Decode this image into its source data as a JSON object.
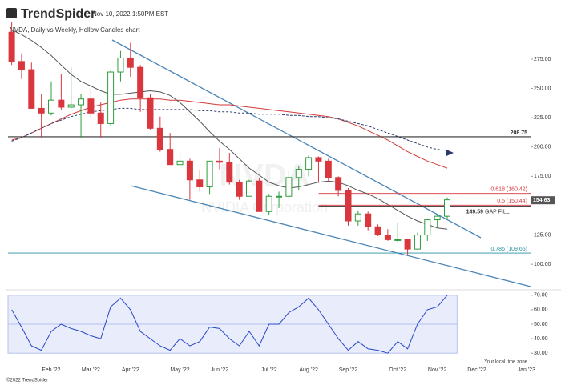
{
  "header": {
    "brand": "TrendSpider",
    "timestamp": "Nov 10, 2022 1:50PM EST",
    "subtitle": "NVDA, Daily vs Weekly, Hollow Candles chart",
    "watermark": "NVDA",
    "watermark_sub": "NVIDIA Corporation"
  },
  "footer": {
    "copyright": "©2022 TrendSpider",
    "timezone": "Your local time zone"
  },
  "chart_data": [
    {
      "type": "candlestick",
      "categories": [
        null,
        null,
        null,
        null,
        "Feb '22",
        null,
        null,
        null,
        "Mar '22",
        null,
        null,
        null,
        "Apr '22",
        null,
        null,
        null,
        null,
        "May '22",
        null,
        null,
        null,
        "Jun '22",
        null,
        null,
        null,
        null,
        "Jul '22",
        null,
        null,
        null,
        "Aug '22",
        null,
        null,
        null,
        "Sep '22",
        null,
        null,
        null,
        null,
        "Oct '22",
        null,
        null,
        null,
        "Nov '22",
        null,
        null,
        null,
        "Dec '22",
        null,
        null,
        null,
        null,
        "Jan '23",
        null
      ],
      "open": [
        298,
        273,
        266,
        233,
        229,
        240,
        234,
        236,
        241,
        229,
        220,
        264,
        276,
        268,
        242,
        216,
        198,
        185,
        188,
        172,
        166,
        188,
        187,
        170,
        158,
        171,
        145,
        158,
        158,
        174,
        181,
        191,
        188,
        174,
        163,
        137,
        143,
        132,
        125,
        121,
        121,
        113,
        125,
        138,
        141,
        null,
        null,
        null,
        null,
        null,
        null,
        null,
        null,
        null
      ],
      "high": [
        307,
        280,
        272,
        245,
        256,
        262,
        268,
        245,
        250,
        238,
        265,
        282,
        289,
        270,
        245,
        226,
        212,
        197,
        190,
        180,
        188,
        199,
        195,
        172,
        172,
        174,
        160,
        162,
        180,
        184,
        193,
        192,
        190,
        175,
        165,
        146,
        145,
        134,
        130,
        135,
        122,
        127,
        139,
        142,
        157,
        null,
        null,
        null,
        null,
        null,
        null,
        null,
        null,
        null
      ],
      "low": [
        270,
        258,
        233,
        208,
        227,
        232,
        233,
        208,
        225,
        208,
        218,
        256,
        260,
        230,
        215,
        196,
        185,
        180,
        155,
        162,
        160,
        181,
        168,
        155,
        158,
        145,
        142,
        148,
        156,
        163,
        175,
        170,
        170,
        158,
        133,
        133,
        129,
        124,
        120,
        119,
        108,
        113,
        120,
        131,
        139,
        null,
        null,
        null,
        null,
        null,
        null,
        null,
        null,
        null
      ],
      "close": [
        273,
        266,
        233,
        229,
        240,
        234,
        236,
        241,
        229,
        220,
        264,
        276,
        268,
        242,
        216,
        198,
        185,
        188,
        172,
        166,
        188,
        187,
        170,
        158,
        171,
        145,
        158,
        158,
        174,
        181,
        191,
        188,
        174,
        163,
        137,
        143,
        132,
        125,
        121,
        121,
        113,
        125,
        138,
        141,
        155,
        null,
        null,
        null,
        null,
        null,
        null,
        null,
        null,
        null
      ],
      "up_color": "#2e9e3e",
      "down_color": "#d9363e",
      "series": [
        {
          "color": "#d23a3a",
          "dashed": false,
          "values": [
            206,
            208,
            212,
            216,
            220,
            224,
            228,
            231,
            234,
            236,
            238,
            240,
            241,
            241,
            241,
            241,
            240,
            240,
            239,
            238,
            237,
            236,
            236,
            235,
            234,
            233,
            232,
            231,
            230,
            229,
            228,
            227,
            226,
            224,
            221,
            218,
            214,
            210,
            206,
            201,
            196,
            192,
            188,
            185,
            182,
            null,
            null,
            null,
            null,
            null,
            null,
            null,
            null,
            null
          ]
        },
        {
          "color": "#2b3a6b",
          "dashed": true,
          "values": [
            205,
            208,
            212,
            216,
            220,
            223,
            226,
            228,
            230,
            231,
            232,
            233,
            233,
            232,
            232,
            232,
            232,
            232,
            232,
            231,
            231,
            230,
            230,
            229,
            229,
            228,
            228,
            228,
            227,
            227,
            226,
            226,
            225,
            224,
            222,
            220,
            218,
            215,
            212,
            209,
            206,
            203,
            200,
            198,
            197,
            null,
            null,
            null,
            null,
            null,
            null,
            null,
            null,
            null
          ]
        },
        {
          "color": "#555555",
          "dashed": false,
          "values": [
            300,
            296,
            291,
            285,
            278,
            270,
            262,
            256,
            252,
            248,
            245,
            245,
            246,
            247,
            248,
            247,
            244,
            238,
            230,
            222,
            213,
            205,
            198,
            190,
            182,
            176,
            170,
            167,
            165,
            166,
            168,
            170,
            171,
            170,
            167,
            163,
            160,
            156,
            151,
            146,
            141,
            137,
            134,
            131,
            130,
            null,
            null,
            null,
            null,
            null,
            null,
            null,
            null,
            null
          ]
        }
      ],
      "levels": [
        {
          "value": 208.75,
          "label": "208.75",
          "color": "#333333"
        },
        {
          "value": 160.42,
          "label": "0.618 (160.42)",
          "color": "#d9363e"
        },
        {
          "value": 150.44,
          "label": "0.5 (150.44)",
          "color": "#d9363e"
        },
        {
          "value": 109.65,
          "label": "0.786 (109.65)",
          "color": "#2a8fa0"
        }
      ],
      "gap": {
        "value": 149.59,
        "label": "149.59",
        "text": "GAP FILL"
      },
      "last_price": {
        "value": 154.63,
        "label": "154.63"
      },
      "ylim": [
        81,
        305
      ],
      "yticks": [
        {
          "value": 100,
          "label": "100.00"
        },
        {
          "value": 125,
          "label": "125.00"
        },
        {
          "value": 175,
          "label": "175.00"
        },
        {
          "value": 200,
          "label": "200.00"
        },
        {
          "value": 225,
          "label": "225.00"
        },
        {
          "value": 250,
          "label": "250.00"
        },
        {
          "value": 275,
          "label": "275.00"
        }
      ]
    },
    {
      "type": "line",
      "values": [
        60,
        48,
        35,
        32,
        45,
        50,
        47,
        45,
        42,
        40,
        62,
        68,
        60,
        45,
        40,
        35,
        32,
        40,
        35,
        38,
        48,
        47,
        40,
        35,
        45,
        35,
        50,
        50,
        58,
        62,
        68,
        60,
        50,
        40,
        32,
        38,
        33,
        32,
        30,
        38,
        33,
        50,
        60,
        62,
        70,
        null,
        null,
        null,
        null,
        null,
        null,
        null,
        null,
        null
      ],
      "color": "#2848c8",
      "band": [
        30,
        70
      ],
      "ylim": [
        29,
        71
      ],
      "yticks": [
        {
          "value": 30,
          "label": "30.00"
        },
        {
          "value": 40,
          "label": "40.00"
        },
        {
          "value": 50,
          "label": "50.00"
        },
        {
          "value": 60,
          "label": "60.00"
        },
        {
          "value": 70,
          "label": "70.00"
        }
      ]
    }
  ]
}
